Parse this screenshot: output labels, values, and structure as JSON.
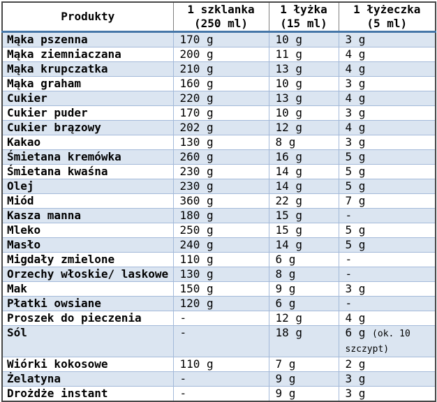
{
  "colors": {
    "band": "#dbe5f1",
    "grid": "#a3b9d9",
    "header_divider": "#7f7f7f",
    "header_underline": "#4576a8",
    "outer_border": "#474747"
  },
  "table": {
    "columns": [
      {
        "label": "Produkty",
        "sub": ""
      },
      {
        "label": "1 szklanka",
        "sub": "(250 ml)"
      },
      {
        "label": "1 łyżka",
        "sub": "(15 ml)"
      },
      {
        "label": "1 łyżeczka",
        "sub": "(5 ml)"
      }
    ],
    "rows": [
      {
        "product": "Mąka pszenna",
        "cup": "170 g",
        "spoon": "10 g",
        "tsp": "3 g"
      },
      {
        "product": "Mąka ziemniaczana",
        "cup": "200 g",
        "spoon": "11 g",
        "tsp": "4 g"
      },
      {
        "product": "Mąka krupczatka",
        "cup": "210 g",
        "spoon": "13 g",
        "tsp": "4 g"
      },
      {
        "product": "Mąka graham",
        "cup": "160 g",
        "spoon": "10 g",
        "tsp": "3 g"
      },
      {
        "product": "Cukier",
        "cup": "220 g",
        "spoon": "13 g",
        "tsp": "4 g"
      },
      {
        "product": "Cukier puder",
        "cup": "170 g",
        "spoon": "10 g",
        "tsp": "3 g"
      },
      {
        "product": "Cukier brązowy",
        "cup": "202 g",
        "spoon": "12 g",
        "tsp": "4 g"
      },
      {
        "product": "Kakao",
        "cup": "130 g",
        "spoon": "8 g",
        "tsp": "3 g"
      },
      {
        "product": "Śmietana kremówka",
        "cup": "260 g",
        "spoon": "16 g",
        "tsp": "5 g"
      },
      {
        "product": "Śmietana kwaśna",
        "cup": "230 g",
        "spoon": "14 g",
        "tsp": "5 g"
      },
      {
        "product": "Olej",
        "cup": "230 g",
        "spoon": "14 g",
        "tsp": "5 g"
      },
      {
        "product": "Miód",
        "cup": "360 g",
        "spoon": "22 g",
        "tsp": "7 g"
      },
      {
        "product": "Kasza manna",
        "cup": "180 g",
        "spoon": "15 g",
        "tsp": "-"
      },
      {
        "product": "Mleko",
        "cup": "250 g",
        "spoon": "15 g",
        "tsp": "5 g"
      },
      {
        "product": "Masło",
        "cup": "240 g",
        "spoon": "14 g",
        "tsp": "5 g"
      },
      {
        "product": "Migdały zmielone",
        "cup": "110 g",
        "spoon": "6 g",
        "tsp": "-"
      },
      {
        "product": "Orzechy włoskie/ laskowe",
        "cup": "130 g",
        "spoon": "8 g",
        "tsp": "-"
      },
      {
        "product": "Mak",
        "cup": "150 g",
        "spoon": "9 g",
        "tsp": "3 g"
      },
      {
        "product": "Płatki owsiane",
        "cup": "120 g",
        "spoon": "6 g",
        "tsp": "-"
      },
      {
        "product": "Proszek do pieczenia",
        "cup": "-",
        "spoon": "12 g",
        "tsp": "4 g"
      },
      {
        "product": "Sól",
        "cup": "-",
        "spoon": "18 g",
        "tsp": "6 g",
        "tsp_note": "(ok. 10 szczypt)"
      },
      {
        "product": "Wiórki kokosowe",
        "cup": "110 g",
        "spoon": "7 g",
        "tsp": "2 g"
      },
      {
        "product": "Żelatyna",
        "cup": "-",
        "spoon": "9 g",
        "tsp": "3 g"
      },
      {
        "product": "Drożdże instant",
        "cup": "-",
        "spoon": "9 g",
        "tsp": "3 g"
      }
    ]
  }
}
